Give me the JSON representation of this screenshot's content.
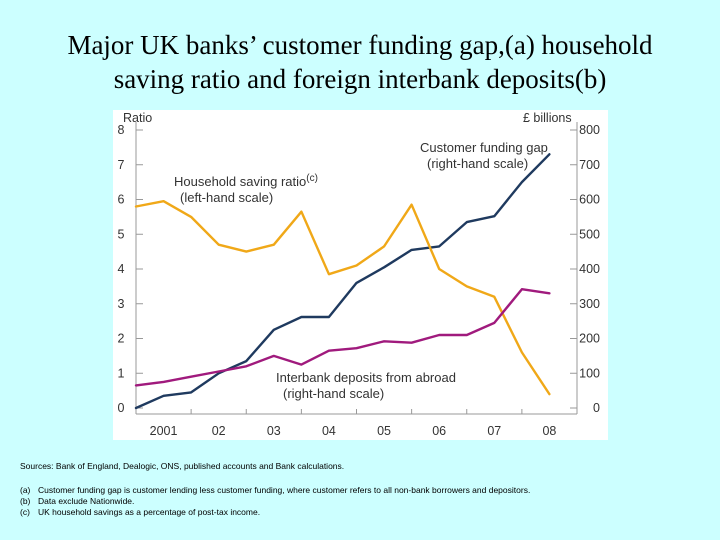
{
  "title": {
    "line1": "Major UK banks’ customer funding gap,(a) household",
    "line2": "saving ratio and foreign interbank deposits(b)"
  },
  "notes": {
    "sources": "Sources: Bank of England, Dealogic, ONS, published accounts and Bank calculations.",
    "footnotes": [
      {
        "label": "(a)",
        "text": "Customer funding gap is customer lending less customer funding, where customer refers to all non-bank borrowers and depositors."
      },
      {
        "label": "(b)",
        "text": "Data exclude Nationwide."
      },
      {
        "label": "(c)",
        "text": "UK household savings as a percentage of post-tax income."
      }
    ]
  },
  "chart_data": {
    "type": "line",
    "left_axis_title": "Ratio",
    "right_axis_title": "£ billions",
    "left_ticks": [
      "0",
      "1",
      "2",
      "3",
      "4",
      "5",
      "6",
      "7",
      "8"
    ],
    "right_ticks": [
      "0",
      "100",
      "200",
      "300",
      "400",
      "500",
      "600",
      "700",
      "800"
    ],
    "ylim_left": [
      0,
      8
    ],
    "ylim_right": [
      0,
      800
    ],
    "x_ticks": [
      "2001",
      "02",
      "03",
      "04",
      "05",
      "06",
      "07",
      "08"
    ],
    "xlim": [
      2000.5,
      2008.5
    ],
    "grid": false,
    "annotations": {
      "gap": [
        "Customer funding gap",
        "(right-hand scale)"
      ],
      "saving": [
        "Household saving ratio",
        "(left-hand scale)"
      ],
      "saving_sup": "(c)",
      "interbank": [
        "Interbank deposits from abroad",
        "(right-hand scale)"
      ]
    },
    "series": [
      {
        "name": "Customer funding gap",
        "axis": "right",
        "color": "#1f3a5f",
        "x": [
          2000.5,
          2001.0,
          2001.5,
          2002.0,
          2002.5,
          2003.0,
          2003.5,
          2004.0,
          2004.5,
          2005.0,
          2005.5,
          2006.0,
          2006.5,
          2007.0,
          2007.5,
          2008.0
        ],
        "values": [
          0,
          35,
          45,
          100,
          135,
          225,
          262,
          262,
          360,
          405,
          455,
          465,
          535,
          552,
          650,
          730
        ]
      },
      {
        "name": "Household saving ratio",
        "axis": "left",
        "color": "#f0a818",
        "x": [
          2000.5,
          2001.0,
          2001.5,
          2002.0,
          2002.5,
          2003.0,
          2003.5,
          2004.0,
          2004.5,
          2005.0,
          2005.5,
          2006.0,
          2006.5,
          2007.0,
          2007.5,
          2008.0
        ],
        "values": [
          5.8,
          5.95,
          5.5,
          4.7,
          4.5,
          4.7,
          5.65,
          3.85,
          4.1,
          4.65,
          5.85,
          4.0,
          3.5,
          3.2,
          1.6,
          0.4
        ]
      },
      {
        "name": "Interbank deposits from abroad",
        "axis": "right",
        "color": "#a01a7d",
        "x": [
          2000.5,
          2001.0,
          2001.5,
          2002.0,
          2002.5,
          2003.0,
          2003.5,
          2004.0,
          2004.5,
          2005.0,
          2005.5,
          2006.0,
          2006.5,
          2007.0,
          2007.5,
          2008.0
        ],
        "values": [
          65,
          75,
          90,
          105,
          120,
          150,
          125,
          165,
          172,
          192,
          188,
          210,
          210,
          245,
          342,
          330
        ]
      }
    ]
  }
}
